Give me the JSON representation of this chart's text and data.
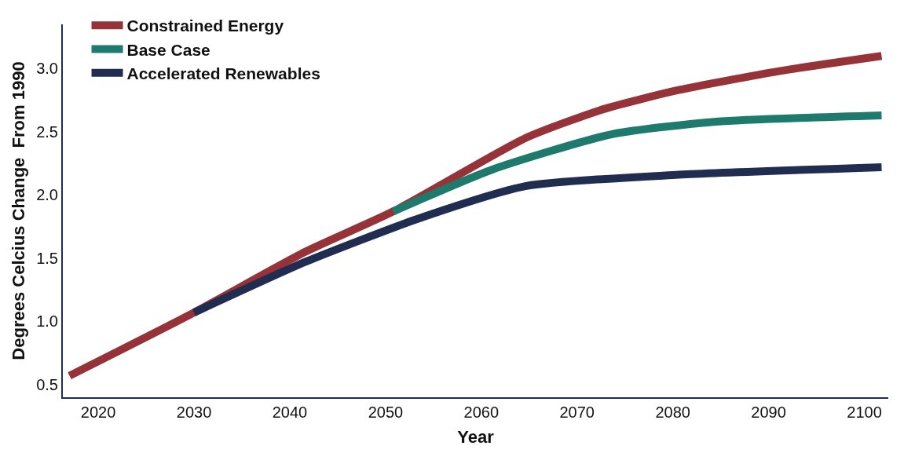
{
  "chart_data": {
    "type": "line",
    "xlabel": "Year",
    "ylabel": "Degrees Celcius Change  From 1990",
    "series": [
      {
        "name": "Constrained Energy",
        "color": "#963339",
        "x": [
          2017.0,
          2030,
          2041.6,
          2050.8,
          2064.6,
          2072.8,
          2080.6,
          2091.1,
          2101.8
        ],
        "values": [
          0.57,
          1.07,
          1.55,
          1.87,
          2.45,
          2.68,
          2.83,
          2.98,
          3.1
        ]
      },
      {
        "name": "Base Case",
        "color": "#1f7a6e",
        "x": [
          2050.8,
          2061.1,
          2073.6,
          2084.5,
          2101.8
        ],
        "values": [
          1.87,
          2.2,
          2.48,
          2.58,
          2.63
        ]
      },
      {
        "name": "Accelerated Renewables",
        "color": "#212c51",
        "x": [
          2030,
          2041.6,
          2053.3,
          2064.6,
          2080.6,
          2101.8
        ],
        "values": [
          1.07,
          1.47,
          1.81,
          2.07,
          2.16,
          2.22
        ]
      }
    ],
    "xlim": [
      2016.3,
      2102.5
    ],
    "xticks": [
      2020,
      2030,
      2040,
      2050,
      2060,
      2070,
      2080,
      2090,
      2100
    ],
    "ylim": [
      0.4,
      3.35
    ],
    "yticks": [
      {
        "value": 0.5,
        "label": "0.5"
      },
      {
        "value": 1,
        "label": "1.0"
      },
      {
        "value": 1.5,
        "label": "1.5"
      },
      {
        "value": 2,
        "label": "2.0"
      },
      {
        "value": 2.5,
        "label": "2.5"
      },
      {
        "value": 3,
        "label": "3.0"
      }
    ],
    "grid": false,
    "legend": "top left",
    "marker": "none",
    "line_style": "solid"
  }
}
